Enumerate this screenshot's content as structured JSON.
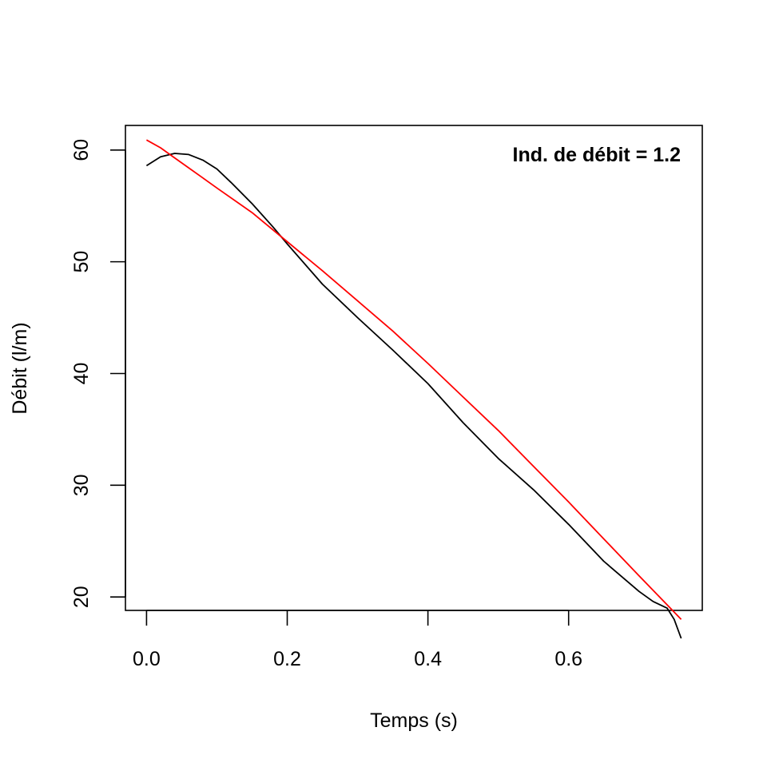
{
  "chart_data": {
    "type": "line",
    "title": "",
    "xlabel": "Temps (s)",
    "ylabel": "Débit (l/m)",
    "xlim": [
      -0.03,
      0.79
    ],
    "ylim": [
      18.8,
      62.2
    ],
    "xticks": [
      0.0,
      0.2,
      0.4,
      0.6
    ],
    "xtick_labels": [
      "0.0",
      "0.2",
      "0.4",
      "0.6"
    ],
    "yticks": [
      20,
      30,
      40,
      50,
      60
    ],
    "ytick_labels": [
      "20",
      "30",
      "40",
      "50",
      "60"
    ],
    "annotation": "Ind. de débit = 1.2",
    "grid": false,
    "series": [
      {
        "color": "#000000",
        "x": [
          0.0,
          0.02,
          0.04,
          0.06,
          0.08,
          0.1,
          0.12,
          0.15,
          0.18,
          0.2,
          0.25,
          0.3,
          0.35,
          0.4,
          0.45,
          0.5,
          0.55,
          0.6,
          0.65,
          0.7,
          0.72,
          0.74,
          0.75,
          0.76
        ],
        "y": [
          58.6,
          59.4,
          59.7,
          59.6,
          59.1,
          58.3,
          57.1,
          55.2,
          53.1,
          51.6,
          48.0,
          45.0,
          42.1,
          39.1,
          35.6,
          32.4,
          29.6,
          26.5,
          23.2,
          20.5,
          19.6,
          19.0,
          18.0,
          16.3
        ]
      },
      {
        "color": "#ff0000",
        "x": [
          0.0,
          0.02,
          0.04,
          0.06,
          0.08,
          0.1,
          0.15,
          0.2,
          0.25,
          0.3,
          0.35,
          0.4,
          0.45,
          0.5,
          0.55,
          0.6,
          0.65,
          0.7,
          0.76
        ],
        "y": [
          60.9,
          60.2,
          59.3,
          58.4,
          57.5,
          56.6,
          54.4,
          51.8,
          49.2,
          46.5,
          43.8,
          40.9,
          37.9,
          34.9,
          31.7,
          28.5,
          25.2,
          21.9,
          18.0
        ]
      }
    ]
  }
}
